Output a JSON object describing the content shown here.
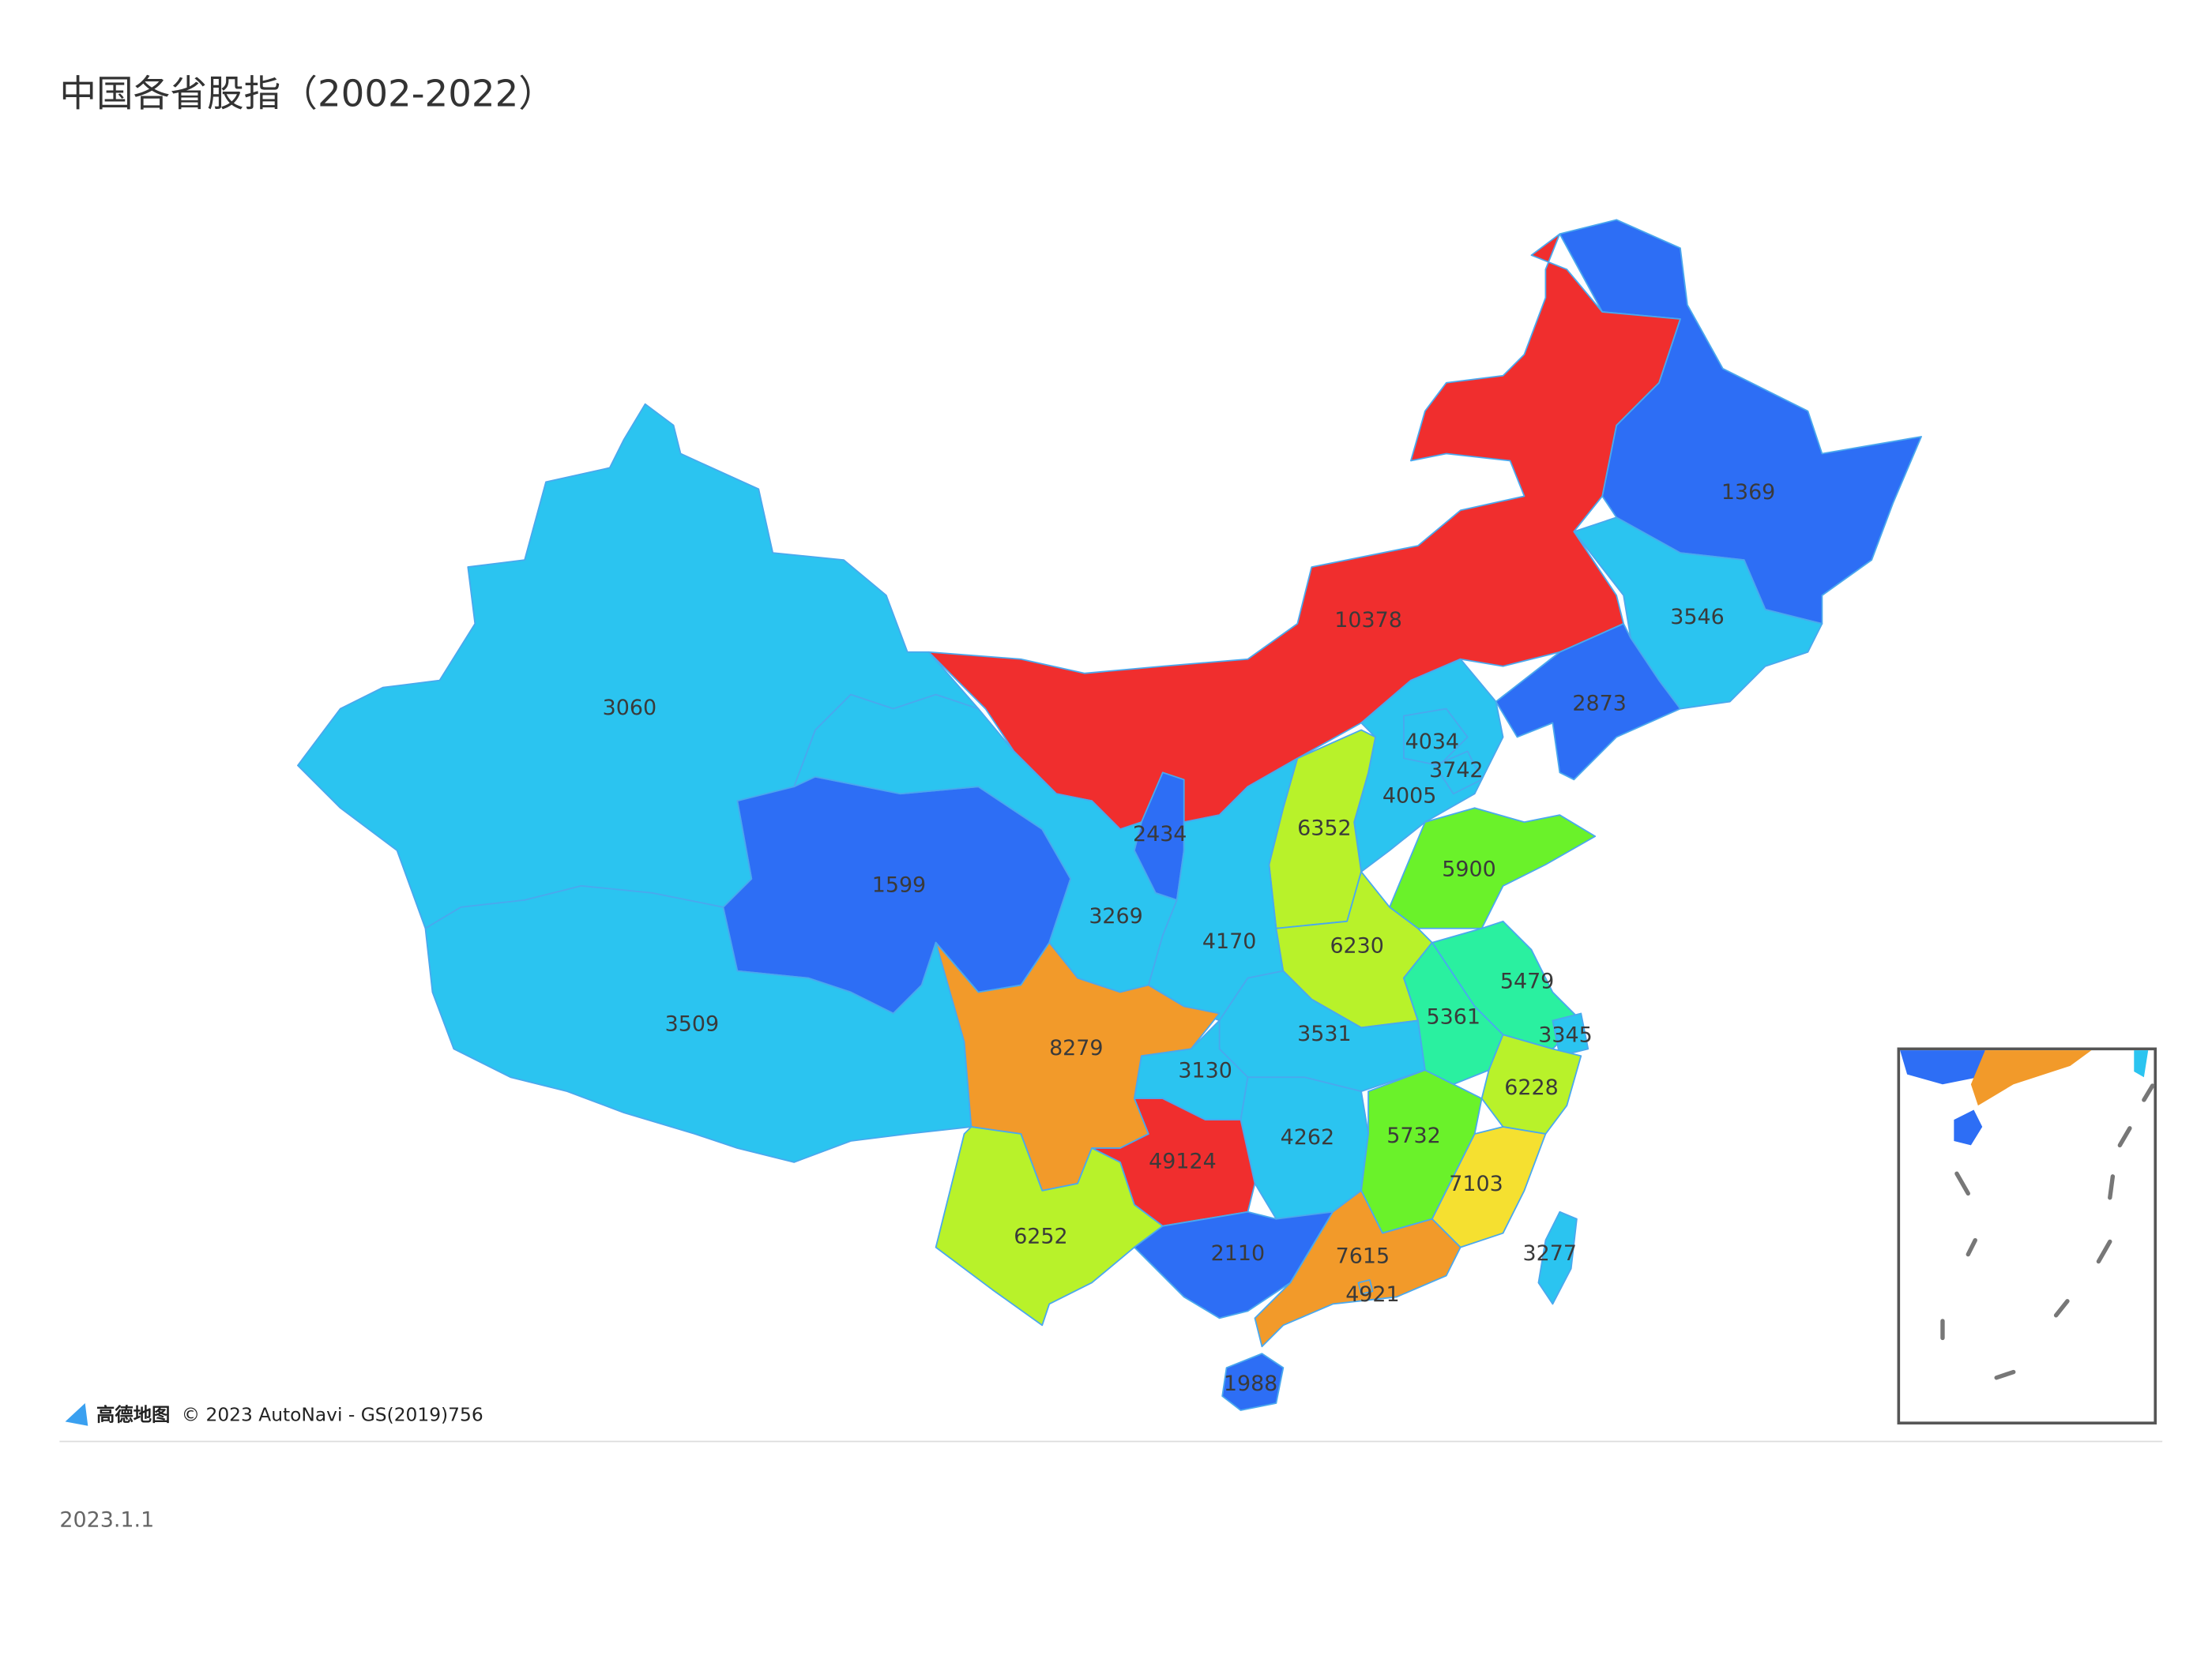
{
  "title": "中国各省股指（2002-2022）",
  "regions": [
    {
      "value": 1369,
      "color": "#2d6ef5"
    },
    {
      "value": 10378,
      "color": "#f02e2e"
    },
    {
      "value": 3546,
      "color": "#2bc4f0"
    },
    {
      "value": 2873,
      "color": "#2d6ef5"
    },
    {
      "value": 4005,
      "color": "#2bc4f0"
    },
    {
      "value": 4034,
      "color": "#2bc4f0"
    },
    {
      "value": 3742,
      "color": "#2bc4f0"
    },
    {
      "value": 6352,
      "color": "#b8f22a"
    },
    {
      "value": 5900,
      "color": "#6af22a"
    },
    {
      "value": 2434,
      "color": "#2d6ef5"
    },
    {
      "value": 1599,
      "color": "#2d6ef5"
    },
    {
      "value": 3060,
      "color": "#2bc4f0"
    },
    {
      "value": 3509,
      "color": "#2bc4f0"
    },
    {
      "value": 3269,
      "color": "#2bc4f0"
    },
    {
      "value": 4170,
      "color": "#2bc4f0"
    },
    {
      "value": 6230,
      "color": "#b8f22a"
    },
    {
      "value": 5479,
      "color": "#2af0a0"
    },
    {
      "value": 5361,
      "color": "#2af0a0"
    },
    {
      "value": 3345,
      "color": "#2bc4f0"
    },
    {
      "value": 3531,
      "color": "#2bc4f0"
    },
    {
      "value": 6228,
      "color": "#b8f22a"
    },
    {
      "value": 8279,
      "color": "#f29a2a"
    },
    {
      "value": 3130,
      "color": "#2bc4f0"
    },
    {
      "value": 4262,
      "color": "#2bc4f0"
    },
    {
      "value": 5732,
      "color": "#6af22a"
    },
    {
      "value": 7103,
      "color": "#f5e030"
    },
    {
      "value": 49124,
      "color": "#f02e2e"
    },
    {
      "value": 6252,
      "color": "#b8f22a"
    },
    {
      "value": 2110,
      "color": "#2d6ef5"
    },
    {
      "value": 7615,
      "color": "#f29a2a"
    },
    {
      "value": 4921,
      "color": "#f29a2a"
    },
    {
      "value": 1988,
      "color": "#2d6ef5"
    },
    {
      "value": 3277,
      "color": "#2bc4f0"
    }
  ],
  "logo": "高德地图",
  "attribution": "© 2023 AutoNavi - GS(2019)756",
  "date": "2023.1.1"
}
